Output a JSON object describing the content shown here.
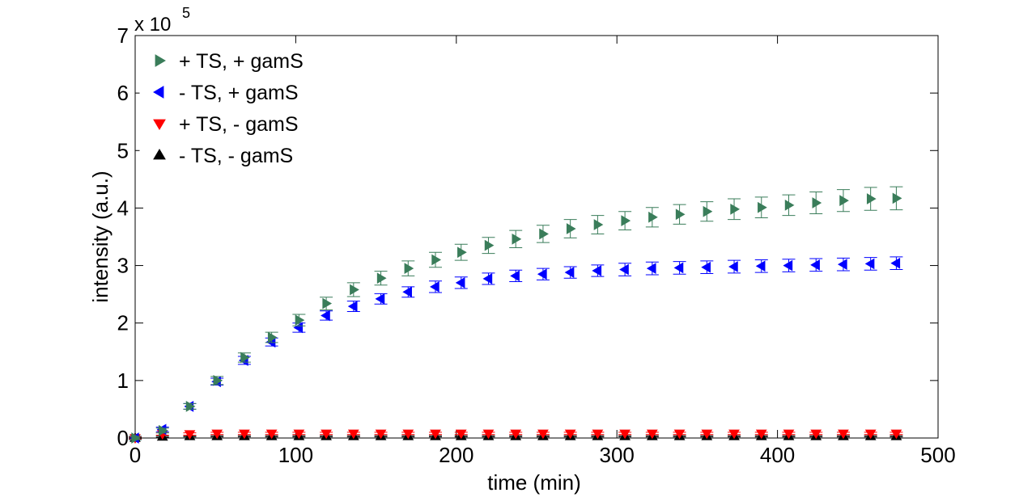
{
  "chart_data": {
    "type": "scatter",
    "title": "",
    "xlabel": "time (min)",
    "ylabel": "intensity (a.u.)",
    "xlim": [
      0,
      500
    ],
    "ylim": [
      0,
      7
    ],
    "y_scale_label": "x 10",
    "y_scale_exponent": "5",
    "xticks": [
      0,
      100,
      200,
      300,
      400,
      500
    ],
    "xtick_labels": [
      "0",
      "100",
      "200",
      "300",
      "400",
      "500"
    ],
    "yticks": [
      0,
      1,
      2,
      3,
      4,
      5,
      6,
      7
    ],
    "ytick_labels": [
      "0",
      "1",
      "2",
      "3",
      "4",
      "5",
      "6",
      "7"
    ],
    "grid": false,
    "legend_position": "top-left",
    "x": [
      0,
      17,
      34,
      51,
      68,
      85,
      102,
      119,
      136,
      153,
      170,
      187,
      203,
      220,
      237,
      254,
      271,
      288,
      305,
      322,
      339,
      356,
      373,
      390,
      407,
      424,
      441,
      458,
      474
    ],
    "series": [
      {
        "name": "+ TS, + gamS",
        "color": "#3a7d5a",
        "marker": "triangle-right",
        "values": [
          0.0,
          0.13,
          0.55,
          1.0,
          1.4,
          1.75,
          2.05,
          2.34,
          2.58,
          2.78,
          2.95,
          3.1,
          3.23,
          3.35,
          3.46,
          3.55,
          3.64,
          3.71,
          3.78,
          3.84,
          3.89,
          3.94,
          3.98,
          4.01,
          4.05,
          4.09,
          4.13,
          4.16,
          4.17
        ],
        "errors": [
          0.03,
          0.04,
          0.05,
          0.07,
          0.08,
          0.09,
          0.1,
          0.11,
          0.12,
          0.12,
          0.13,
          0.13,
          0.14,
          0.14,
          0.15,
          0.15,
          0.16,
          0.16,
          0.16,
          0.17,
          0.17,
          0.17,
          0.18,
          0.18,
          0.18,
          0.19,
          0.19,
          0.2,
          0.2
        ]
      },
      {
        "name": "- TS, + gamS",
        "color": "#0000ff",
        "marker": "triangle-left",
        "values": [
          0.0,
          0.15,
          0.55,
          0.98,
          1.35,
          1.67,
          1.92,
          2.13,
          2.29,
          2.42,
          2.54,
          2.63,
          2.7,
          2.77,
          2.82,
          2.85,
          2.88,
          2.91,
          2.93,
          2.95,
          2.96,
          2.97,
          2.98,
          2.99,
          3.0,
          3.01,
          3.02,
          3.03,
          3.04
        ],
        "errors": [
          0.03,
          0.04,
          0.05,
          0.06,
          0.07,
          0.07,
          0.08,
          0.08,
          0.09,
          0.09,
          0.09,
          0.1,
          0.1,
          0.1,
          0.1,
          0.1,
          0.1,
          0.1,
          0.11,
          0.11,
          0.11,
          0.11,
          0.11,
          0.11,
          0.11,
          0.11,
          0.11,
          0.11,
          0.11
        ]
      },
      {
        "name": "+ TS, - gamS",
        "color": "#ff0000",
        "marker": "triangle-down",
        "values": [
          0.0,
          0.07,
          0.07,
          0.08,
          0.08,
          0.08,
          0.08,
          0.08,
          0.08,
          0.08,
          0.08,
          0.08,
          0.08,
          0.08,
          0.08,
          0.08,
          0.08,
          0.08,
          0.08,
          0.08,
          0.08,
          0.08,
          0.08,
          0.08,
          0.08,
          0.08,
          0.08,
          0.08,
          0.08
        ],
        "errors": [
          0.02,
          0.02,
          0.02,
          0.02,
          0.02,
          0.02,
          0.02,
          0.02,
          0.02,
          0.02,
          0.02,
          0.02,
          0.02,
          0.02,
          0.02,
          0.02,
          0.02,
          0.02,
          0.02,
          0.02,
          0.02,
          0.02,
          0.02,
          0.02,
          0.02,
          0.02,
          0.02,
          0.02,
          0.02
        ]
      },
      {
        "name": "- TS, - gamS",
        "color": "#000000",
        "marker": "triangle-up",
        "values": [
          0.0,
          0.02,
          0.03,
          0.03,
          0.03,
          0.03,
          0.03,
          0.03,
          0.03,
          0.03,
          0.03,
          0.03,
          0.03,
          0.03,
          0.03,
          0.03,
          0.03,
          0.03,
          0.03,
          0.03,
          0.03,
          0.03,
          0.03,
          0.03,
          0.03,
          0.03,
          0.03,
          0.03,
          0.03
        ],
        "errors": [
          0.01,
          0.01,
          0.01,
          0.01,
          0.01,
          0.01,
          0.01,
          0.01,
          0.01,
          0.01,
          0.01,
          0.01,
          0.01,
          0.01,
          0.01,
          0.01,
          0.01,
          0.01,
          0.01,
          0.01,
          0.01,
          0.01,
          0.01,
          0.01,
          0.01,
          0.01,
          0.01,
          0.01,
          0.01
        ]
      }
    ]
  }
}
